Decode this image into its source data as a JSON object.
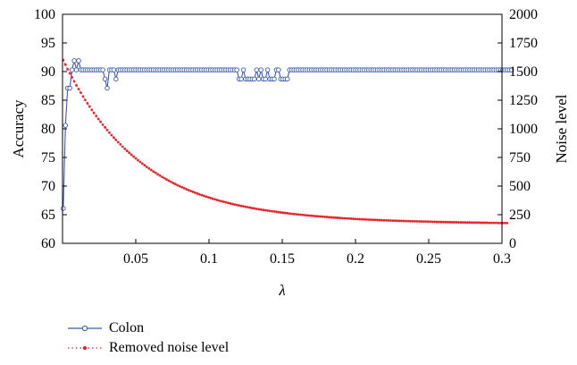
{
  "chart_data": {
    "type": "line",
    "xlabel": "λ",
    "ylabel_left": "Accuracy",
    "ylabel_right": "Noise level",
    "xlim": [
      0,
      0.3
    ],
    "ylim_left": [
      60,
      100
    ],
    "ylim_right": [
      0,
      2000
    ],
    "x_ticks": [
      0.05,
      0.1,
      0.15,
      0.2,
      0.25,
      0.3
    ],
    "x_tick_labels": [
      "0.05",
      "0.1",
      "0.15",
      "0.2",
      "0.25",
      "0.3"
    ],
    "y_left_ticks": [
      60,
      65,
      70,
      75,
      80,
      85,
      90,
      95,
      100
    ],
    "y_left_tick_labels": [
      "60",
      "65",
      "70",
      "75",
      "80",
      "85",
      "90",
      "95",
      "100"
    ],
    "y_right_ticks": [
      0,
      250,
      500,
      750,
      1000,
      1250,
      1500,
      1750,
      2000
    ],
    "y_right_tick_labels": [
      "0",
      "250",
      "500",
      "750",
      "1000",
      "1250",
      "1500",
      "1750",
      "2000"
    ],
    "grid": false,
    "legend_position": "below",
    "series": [
      {
        "name": "Colon",
        "axis": "left",
        "color": "#3a5bb5",
        "style": "solid-line-circle-markers",
        "x_start": 0.0005,
        "x_step": 0.0015,
        "values": [
          66.1,
          80.6,
          87.1,
          87.1,
          90.3,
          91.9,
          90.3,
          91.9,
          90.3,
          90.3,
          90.3,
          90.3,
          90.3,
          90.3,
          90.3,
          90.3,
          90.3,
          90.3,
          90.3,
          88.7,
          87.1,
          90.3,
          90.3,
          90.3,
          88.7,
          90.3,
          90.3,
          90.3,
          90.3,
          90.3,
          90.3,
          90.3,
          90.3,
          90.3,
          90.3,
          90.3,
          90.3,
          90.3,
          90.3,
          90.3,
          90.3,
          90.3,
          90.3,
          90.3,
          90.3,
          90.3,
          90.3,
          90.3,
          90.3,
          90.3,
          90.3,
          90.3,
          90.3,
          90.3,
          90.3,
          90.3,
          90.3,
          90.3,
          90.3,
          90.3,
          90.3,
          90.3,
          90.3,
          90.3,
          90.3,
          90.3,
          90.3,
          90.3,
          90.3,
          90.3,
          90.3,
          90.3,
          90.3,
          90.3,
          90.3,
          90.3,
          90.3,
          90.3,
          90.3,
          90.3,
          88.7,
          88.7,
          90.3,
          88.7,
          88.7,
          88.7,
          88.7,
          88.7,
          90.3,
          88.7,
          90.3,
          88.7,
          88.7,
          90.3,
          88.7,
          88.7,
          88.7,
          90.3,
          90.3,
          88.7,
          88.7,
          88.7,
          88.7,
          90.3,
          90.3,
          90.3,
          90.3,
          90.3,
          90.3,
          90.3,
          90.3,
          90.3,
          90.3,
          90.3,
          90.3,
          90.3,
          90.3,
          90.3,
          90.3,
          90.3,
          90.3,
          90.3,
          90.3,
          90.3,
          90.3,
          90.3,
          90.3,
          90.3,
          90.3,
          90.3,
          90.3,
          90.3,
          90.3,
          90.3,
          90.3,
          90.3,
          90.3,
          90.3,
          90.3,
          90.3,
          90.3,
          90.3,
          90.3,
          90.3,
          90.3,
          90.3,
          90.3,
          90.3,
          90.3,
          90.3,
          90.3,
          90.3,
          90.3,
          90.3,
          90.3,
          90.3,
          90.3,
          90.3,
          90.3,
          90.3,
          90.3,
          90.3,
          90.3,
          90.3,
          90.3,
          90.3,
          90.3,
          90.3,
          90.3,
          90.3,
          90.3,
          90.3,
          90.3,
          90.3,
          90.3,
          90.3,
          90.3,
          90.3,
          90.3,
          90.3,
          90.3,
          90.3,
          90.3,
          90.3,
          90.3,
          90.3,
          90.3,
          90.3,
          90.3,
          90.3,
          90.3,
          90.3,
          90.3,
          90.3,
          90.3,
          90.3,
          90.3,
          90.3,
          90.3,
          90.3,
          90.3,
          90.3,
          90.3,
          90.3,
          90.3
        ]
      },
      {
        "name": "Removed noise level",
        "axis": "right",
        "color": "#e8242b",
        "style": "dotted-line-dot-markers",
        "x_start": 0.0005,
        "x_step": 0.0015,
        "values": [
          1600,
          1560,
          1520,
          1485,
          1450,
          1414,
          1380,
          1347,
          1315,
          1283,
          1252,
          1223,
          1194,
          1166,
          1138,
          1112,
          1086,
          1061,
          1036,
          1013,
          990,
          967,
          945,
          924,
          903,
          883,
          864,
          845,
          826,
          808,
          791,
          774,
          758,
          742,
          726,
          711,
          696,
          682,
          668,
          654,
          641,
          628,
          616,
          603,
          592,
          580,
          569,
          558,
          548,
          537,
          527,
          518,
          508,
          499,
          490,
          482,
          473,
          465,
          457,
          450,
          442,
          435,
          428,
          421,
          415,
          408,
          402,
          396,
          390,
          384,
          379,
          373,
          368,
          363,
          358,
          353,
          348,
          344,
          339,
          335,
          331,
          327,
          323,
          319,
          315,
          312,
          308,
          305,
          301,
          298,
          295,
          292,
          289,
          286,
          283,
          280,
          278,
          275,
          272,
          270,
          267,
          265,
          263,
          260,
          258,
          256,
          254,
          252,
          250,
          248,
          246,
          244,
          242,
          241,
          239,
          237,
          236,
          234,
          233,
          231,
          230,
          228,
          227,
          225,
          224,
          223,
          221,
          220,
          219,
          218,
          217,
          216,
          214,
          213,
          212,
          211,
          210,
          209,
          208,
          207,
          206,
          206,
          205,
          204,
          203,
          202,
          201,
          201,
          200,
          199,
          198,
          198,
          197,
          196,
          196,
          195,
          194,
          194,
          193,
          193,
          192,
          192,
          191,
          191,
          190,
          190,
          189,
          189,
          188,
          188,
          187,
          187,
          186,
          186,
          186,
          185,
          185,
          184,
          184,
          184,
          183,
          183,
          183,
          182,
          182,
          182,
          181,
          181,
          181,
          181,
          180,
          180,
          180,
          180,
          179,
          179,
          179,
          179,
          178,
          178,
          178,
          178,
          177
        ]
      }
    ]
  }
}
